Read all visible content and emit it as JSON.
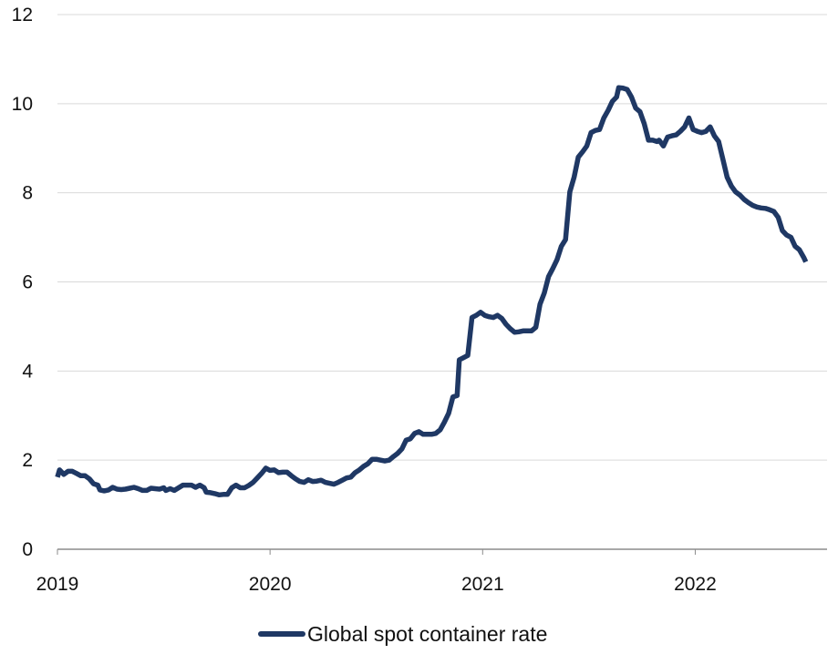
{
  "chart_data": {
    "type": "line",
    "title": "",
    "xlabel": "",
    "ylabel": "",
    "ylim": [
      0,
      12
    ],
    "yticks": [
      0,
      2,
      4,
      6,
      8,
      10,
      12
    ],
    "xlim": [
      2019.0,
      2022.62
    ],
    "xticks": [
      {
        "value": 2019,
        "label": "2019"
      },
      {
        "value": 2020,
        "label": "2020"
      },
      {
        "value": 2021,
        "label": "2021"
      },
      {
        "value": 2022,
        "label": "2022"
      }
    ],
    "grid": "horizontal",
    "legend_position": "bottom-center",
    "series": [
      {
        "name": "Global spot container  rate",
        "color": "#1f3864",
        "points": [
          [
            2019.0,
            1.62
          ],
          [
            2019.01,
            1.78
          ],
          [
            2019.03,
            1.68
          ],
          [
            2019.05,
            1.75
          ],
          [
            2019.07,
            1.75
          ],
          [
            2019.09,
            1.7
          ],
          [
            2019.11,
            1.65
          ],
          [
            2019.13,
            1.65
          ],
          [
            2019.15,
            1.58
          ],
          [
            2019.17,
            1.47
          ],
          [
            2019.19,
            1.44
          ],
          [
            2019.2,
            1.33
          ],
          [
            2019.22,
            1.31
          ],
          [
            2019.24,
            1.33
          ],
          [
            2019.26,
            1.39
          ],
          [
            2019.28,
            1.35
          ],
          [
            2019.3,
            1.34
          ],
          [
            2019.32,
            1.35
          ],
          [
            2019.34,
            1.37
          ],
          [
            2019.36,
            1.39
          ],
          [
            2019.38,
            1.36
          ],
          [
            2019.4,
            1.32
          ],
          [
            2019.42,
            1.32
          ],
          [
            2019.44,
            1.37
          ],
          [
            2019.46,
            1.36
          ],
          [
            2019.48,
            1.35
          ],
          [
            2019.5,
            1.38
          ],
          [
            2019.51,
            1.32
          ],
          [
            2019.53,
            1.36
          ],
          [
            2019.55,
            1.32
          ],
          [
            2019.57,
            1.38
          ],
          [
            2019.59,
            1.44
          ],
          [
            2019.61,
            1.44
          ],
          [
            2019.63,
            1.44
          ],
          [
            2019.65,
            1.39
          ],
          [
            2019.67,
            1.44
          ],
          [
            2019.69,
            1.38
          ],
          [
            2019.7,
            1.28
          ],
          [
            2019.72,
            1.27
          ],
          [
            2019.74,
            1.25
          ],
          [
            2019.76,
            1.22
          ],
          [
            2019.78,
            1.23
          ],
          [
            2019.8,
            1.23
          ],
          [
            2019.82,
            1.38
          ],
          [
            2019.84,
            1.44
          ],
          [
            2019.86,
            1.38
          ],
          [
            2019.88,
            1.38
          ],
          [
            2019.9,
            1.43
          ],
          [
            2019.92,
            1.5
          ],
          [
            2019.94,
            1.6
          ],
          [
            2019.96,
            1.7
          ],
          [
            2019.98,
            1.82
          ],
          [
            2020.0,
            1.77
          ],
          [
            2020.02,
            1.78
          ],
          [
            2020.04,
            1.72
          ],
          [
            2020.06,
            1.73
          ],
          [
            2020.08,
            1.73
          ],
          [
            2020.1,
            1.65
          ],
          [
            2020.12,
            1.58
          ],
          [
            2020.14,
            1.52
          ],
          [
            2020.16,
            1.5
          ],
          [
            2020.18,
            1.56
          ],
          [
            2020.2,
            1.52
          ],
          [
            2020.22,
            1.53
          ],
          [
            2020.24,
            1.55
          ],
          [
            2020.26,
            1.5
          ],
          [
            2020.28,
            1.48
          ],
          [
            2020.3,
            1.46
          ],
          [
            2020.32,
            1.5
          ],
          [
            2020.34,
            1.55
          ],
          [
            2020.36,
            1.6
          ],
          [
            2020.38,
            1.62
          ],
          [
            2020.4,
            1.72
          ],
          [
            2020.42,
            1.78
          ],
          [
            2020.44,
            1.86
          ],
          [
            2020.46,
            1.92
          ],
          [
            2020.48,
            2.02
          ],
          [
            2020.5,
            2.02
          ],
          [
            2020.52,
            2.0
          ],
          [
            2020.54,
            1.98
          ],
          [
            2020.56,
            2.0
          ],
          [
            2020.58,
            2.08
          ],
          [
            2020.6,
            2.15
          ],
          [
            2020.62,
            2.25
          ],
          [
            2020.64,
            2.45
          ],
          [
            2020.66,
            2.48
          ],
          [
            2020.68,
            2.6
          ],
          [
            2020.7,
            2.64
          ],
          [
            2020.72,
            2.58
          ],
          [
            2020.74,
            2.58
          ],
          [
            2020.76,
            2.58
          ],
          [
            2020.78,
            2.6
          ],
          [
            2020.8,
            2.68
          ],
          [
            2020.82,
            2.85
          ],
          [
            2020.84,
            3.05
          ],
          [
            2020.86,
            3.42
          ],
          [
            2020.88,
            3.45
          ],
          [
            2020.89,
            4.25
          ],
          [
            2020.91,
            4.3
          ],
          [
            2020.93,
            4.35
          ],
          [
            2020.95,
            5.2
          ],
          [
            2020.97,
            5.25
          ],
          [
            2020.99,
            5.32
          ],
          [
            2021.01,
            5.25
          ],
          [
            2021.03,
            5.22
          ],
          [
            2021.05,
            5.2
          ],
          [
            2021.07,
            5.25
          ],
          [
            2021.09,
            5.18
          ],
          [
            2021.11,
            5.05
          ],
          [
            2021.13,
            4.95
          ],
          [
            2021.15,
            4.87
          ],
          [
            2021.17,
            4.88
          ],
          [
            2021.19,
            4.9
          ],
          [
            2021.21,
            4.9
          ],
          [
            2021.23,
            4.9
          ],
          [
            2021.25,
            4.98
          ],
          [
            2021.27,
            5.5
          ],
          [
            2021.29,
            5.75
          ],
          [
            2021.31,
            6.12
          ],
          [
            2021.33,
            6.3
          ],
          [
            2021.35,
            6.5
          ],
          [
            2021.37,
            6.8
          ],
          [
            2021.39,
            6.95
          ],
          [
            2021.41,
            8.02
          ],
          [
            2021.43,
            8.35
          ],
          [
            2021.45,
            8.8
          ],
          [
            2021.47,
            8.92
          ],
          [
            2021.49,
            9.05
          ],
          [
            2021.51,
            9.35
          ],
          [
            2021.53,
            9.4
          ],
          [
            2021.55,
            9.42
          ],
          [
            2021.57,
            9.68
          ],
          [
            2021.59,
            9.85
          ],
          [
            2021.61,
            10.05
          ],
          [
            2021.63,
            10.15
          ],
          [
            2021.64,
            10.36
          ],
          [
            2021.66,
            10.35
          ],
          [
            2021.68,
            10.32
          ],
          [
            2021.7,
            10.15
          ],
          [
            2021.72,
            9.9
          ],
          [
            2021.74,
            9.82
          ],
          [
            2021.76,
            9.55
          ],
          [
            2021.78,
            9.18
          ],
          [
            2021.8,
            9.18
          ],
          [
            2021.82,
            9.15
          ],
          [
            2021.83,
            9.18
          ],
          [
            2021.85,
            9.05
          ],
          [
            2021.87,
            9.25
          ],
          [
            2021.89,
            9.28
          ],
          [
            2021.91,
            9.3
          ],
          [
            2021.93,
            9.38
          ],
          [
            2021.95,
            9.48
          ],
          [
            2021.97,
            9.68
          ],
          [
            2021.99,
            9.42
          ],
          [
            2022.01,
            9.38
          ],
          [
            2022.03,
            9.35
          ],
          [
            2022.05,
            9.38
          ],
          [
            2022.07,
            9.48
          ],
          [
            2022.09,
            9.28
          ],
          [
            2022.11,
            9.15
          ],
          [
            2022.13,
            8.75
          ],
          [
            2022.15,
            8.35
          ],
          [
            2022.17,
            8.15
          ],
          [
            2022.19,
            8.02
          ],
          [
            2022.21,
            7.95
          ],
          [
            2022.23,
            7.85
          ],
          [
            2022.25,
            7.78
          ],
          [
            2022.27,
            7.72
          ],
          [
            2022.29,
            7.68
          ],
          [
            2022.31,
            7.66
          ],
          [
            2022.33,
            7.65
          ],
          [
            2022.35,
            7.62
          ],
          [
            2022.37,
            7.58
          ],
          [
            2022.39,
            7.45
          ],
          [
            2022.41,
            7.15
          ],
          [
            2022.43,
            7.05
          ],
          [
            2022.45,
            7.0
          ],
          [
            2022.47,
            6.8
          ],
          [
            2022.49,
            6.72
          ],
          [
            2022.51,
            6.55
          ],
          [
            2022.52,
            6.45
          ]
        ]
      }
    ]
  }
}
